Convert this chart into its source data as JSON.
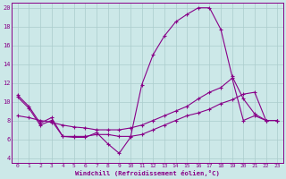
{
  "xlabel": "Windchill (Refroidissement éolien,°C)",
  "bg_color": "#cce8e8",
  "line_color": "#880088",
  "grid_color": "#aacccc",
  "xlim": [
    -0.5,
    23.5
  ],
  "ylim": [
    3.5,
    20.5
  ],
  "yticks": [
    4,
    6,
    8,
    10,
    12,
    14,
    16,
    18,
    20
  ],
  "xticks": [
    0,
    1,
    2,
    3,
    4,
    5,
    6,
    7,
    8,
    9,
    10,
    11,
    12,
    13,
    14,
    15,
    16,
    17,
    18,
    19,
    20,
    21,
    22,
    23
  ],
  "series": [
    {
      "x": [
        0,
        1,
        2,
        3,
        4,
        5,
        6,
        7,
        8,
        9,
        10,
        11,
        12,
        13,
        14,
        15,
        16,
        17,
        18,
        19,
        20,
        21,
        22,
        23
      ],
      "y": [
        10.7,
        9.5,
        7.7,
        8.3,
        6.3,
        6.2,
        6.2,
        6.7,
        5.5,
        4.5,
        6.2,
        11.8,
        15.0,
        17.0,
        18.5,
        19.3,
        20.0,
        20.0,
        17.7,
        12.7,
        10.3,
        8.7,
        8.0,
        8.0
      ]
    },
    {
      "x": [
        0,
        1,
        2,
        3,
        4,
        5,
        6,
        7,
        8,
        9,
        10,
        11,
        12,
        13,
        14,
        15,
        16,
        17,
        18,
        19,
        20,
        21,
        22,
        23
      ],
      "y": [
        8.5,
        8.3,
        8.0,
        7.8,
        7.5,
        7.3,
        7.2,
        7.0,
        7.0,
        7.0,
        7.2,
        7.5,
        8.0,
        8.5,
        9.0,
        9.5,
        10.3,
        11.0,
        11.5,
        12.5,
        8.0,
        8.5,
        8.0,
        8.0
      ]
    },
    {
      "x": [
        0,
        1,
        2,
        3,
        4,
        5,
        6,
        7,
        8,
        9,
        10,
        11,
        12,
        13,
        14,
        15,
        16,
        17,
        18,
        19,
        20,
        21,
        22,
        23
      ],
      "y": [
        10.5,
        9.3,
        7.5,
        8.0,
        6.3,
        6.3,
        6.3,
        6.5,
        6.5,
        6.3,
        6.3,
        6.5,
        7.0,
        7.5,
        8.0,
        8.5,
        8.8,
        9.2,
        9.8,
        10.2,
        10.8,
        11.0,
        8.0,
        8.0
      ]
    }
  ]
}
